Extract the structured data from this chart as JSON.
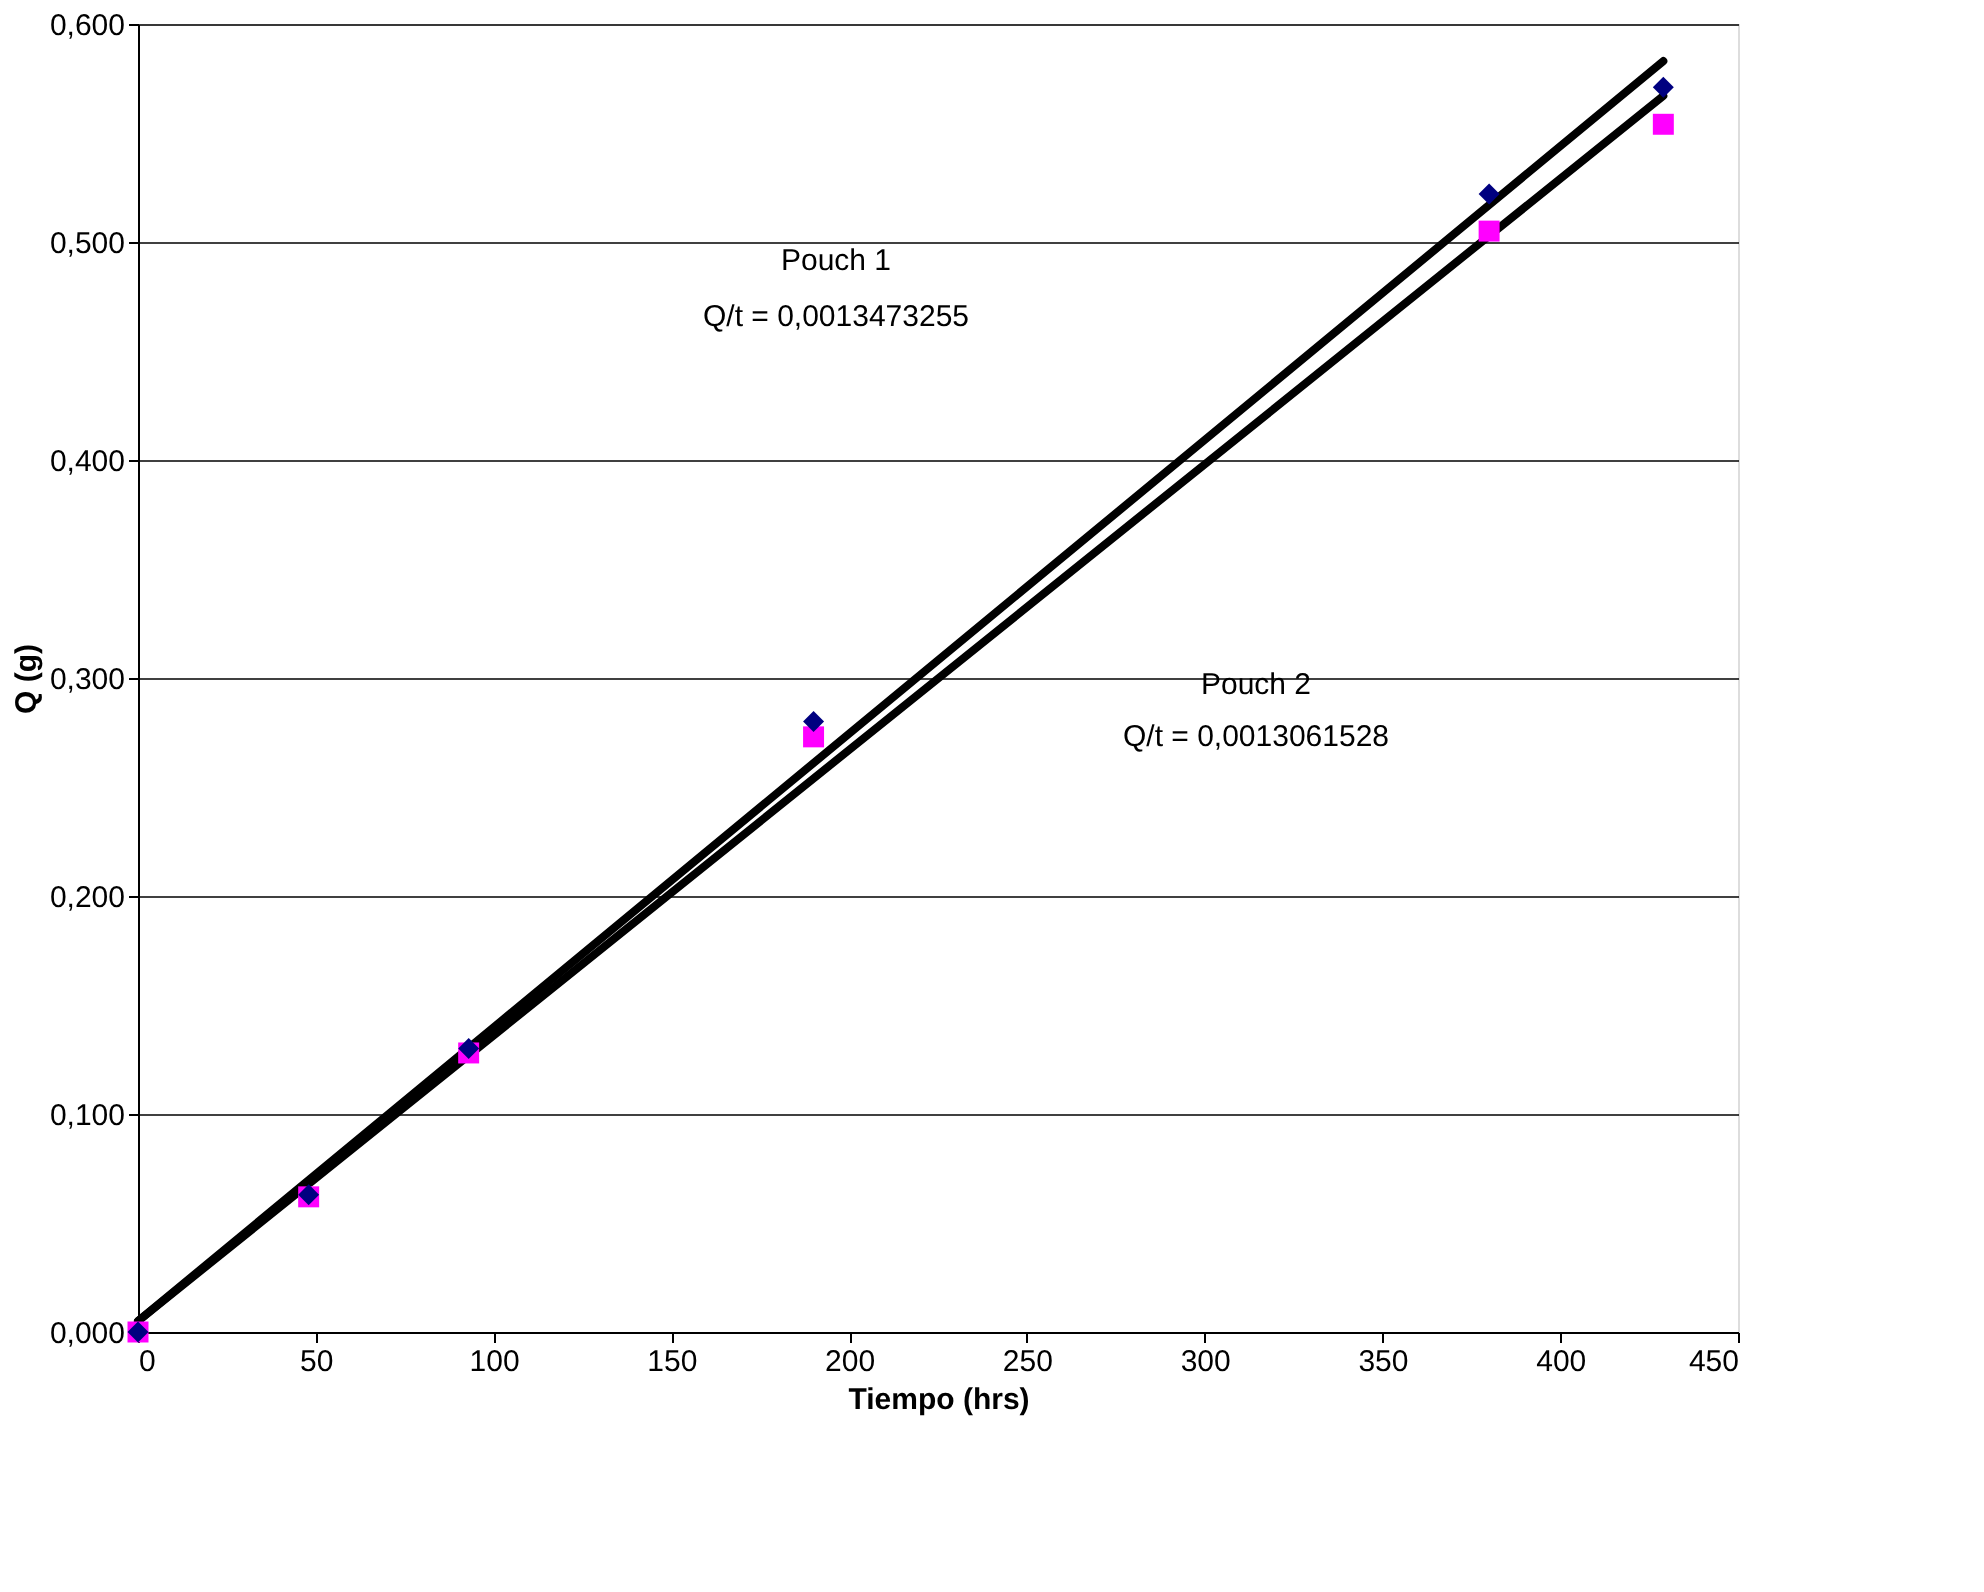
{
  "chart_data": {
    "type": "scatter",
    "xlabel": "Tiempo (hrs)",
    "ylabel": "Q (g)",
    "xlim": [
      0,
      450
    ],
    "xticks": [
      0,
      50,
      100,
      150,
      200,
      250,
      300,
      350,
      400,
      450
    ],
    "ylim": [
      0,
      0.6
    ],
    "yticks": [
      {
        "value": 0,
        "label": "0,000"
      },
      {
        "value": 0.1,
        "label": "0,100"
      },
      {
        "value": 0.2,
        "label": "0,200"
      },
      {
        "value": 0.3,
        "label": "0,300"
      },
      {
        "value": 0.4,
        "label": "0,400"
      },
      {
        "value": 0.5,
        "label": "0,500"
      },
      {
        "value": 0.6,
        "label": "0,600"
      }
    ],
    "grid": "y",
    "series": [
      {
        "marker": "diamond",
        "color": "#000080",
        "x": [
          0,
          48,
          93,
          190,
          380,
          429
        ],
        "values": [
          0,
          0.063,
          0.13,
          0.28,
          0.522,
          0.571
        ]
      },
      {
        "marker": "square",
        "color": "#ff00ff",
        "x": [
          0,
          48,
          93,
          190,
          380,
          429
        ],
        "values": [
          0,
          0.062,
          0.128,
          0.273,
          0.505,
          0.554
        ]
      },
      {
        "type": "line",
        "marker": "none",
        "color": "#000000",
        "x": [
          0,
          429
        ],
        "values": [
          0.005,
          0.583
        ]
      },
      {
        "type": "line",
        "marker": "none",
        "color": "#000000",
        "x": [
          0,
          429
        ],
        "values": [
          0.005,
          0.567
        ]
      }
    ],
    "annotations": [
      "Pouch 1",
      "Q/t = 0,0013473255",
      "Pouch 2",
      "Q/t = 0,0013061528"
    ]
  }
}
